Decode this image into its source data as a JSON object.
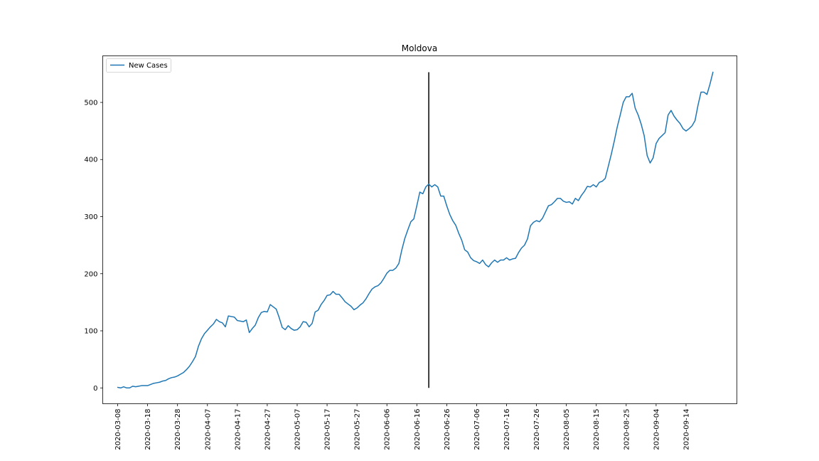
{
  "chart_data": {
    "type": "line",
    "title": "Moldova",
    "xlabel": "",
    "ylabel": "",
    "x_start": "2020-03-08",
    "x_end": "2020-09-28",
    "xlim": [
      "2020-03-03",
      "2020-10-01"
    ],
    "ylim": [
      -27.7,
      581.6
    ],
    "x_tick_labels": [
      "2020-03-08",
      "2020-03-18",
      "2020-03-28",
      "2020-04-07",
      "2020-04-17",
      "2020-04-27",
      "2020-05-07",
      "2020-05-17",
      "2020-05-27",
      "2020-06-06",
      "2020-06-16",
      "2020-06-26",
      "2020-07-06",
      "2020-07-16",
      "2020-07-26",
      "2020-08-05",
      "2020-08-15",
      "2020-08-25",
      "2020-09-04",
      "2020-09-14"
    ],
    "y_ticks": [
      0,
      100,
      200,
      300,
      400,
      500
    ],
    "legend": {
      "position": "top-left",
      "entries": [
        "New Cases"
      ]
    },
    "grid": false,
    "vertical_line": {
      "date": "2020-06-20",
      "ymin": 0,
      "ymax": 553
    },
    "series": [
      {
        "name": "New Cases",
        "color": "#1f77b4",
        "values": [
          1,
          0,
          2,
          0,
          0,
          3,
          2,
          3,
          4,
          4,
          4,
          6,
          8,
          9,
          10,
          12,
          13,
          16,
          18,
          19,
          21,
          24,
          27,
          32,
          38,
          46,
          55,
          73,
          86,
          95,
          101,
          107,
          112,
          120,
          116,
          114,
          107,
          126,
          125,
          124,
          118,
          117,
          116,
          119,
          97,
          104,
          110,
          123,
          132,
          134,
          133,
          146,
          142,
          138,
          123,
          106,
          102,
          109,
          104,
          101,
          102,
          107,
          116,
          115,
          107,
          113,
          133,
          136,
          146,
          153,
          162,
          163,
          169,
          164,
          164,
          158,
          151,
          147,
          143,
          137,
          140,
          145,
          149,
          156,
          165,
          173,
          177,
          179,
          184,
          192,
          201,
          206,
          206,
          210,
          218,
          242,
          262,
          277,
          291,
          296,
          319,
          343,
          340,
          352,
          357,
          352,
          356,
          352,
          336,
          336,
          319,
          304,
          293,
          285,
          271,
          259,
          242,
          238,
          228,
          223,
          221,
          218,
          224,
          216,
          212,
          219,
          224,
          220,
          224,
          224,
          228,
          224,
          226,
          227,
          237,
          245,
          250,
          261,
          284,
          290,
          293,
          291,
          297,
          308,
          319,
          321,
          326,
          332,
          332,
          327,
          325,
          326,
          322,
          332,
          328,
          337,
          344,
          353,
          352,
          356,
          352,
          360,
          362,
          367,
          388,
          409,
          432,
          457,
          478,
          500,
          510,
          510,
          516,
          490,
          478,
          462,
          442,
          407,
          394,
          403,
          428,
          437,
          442,
          447,
          478,
          486,
          476,
          469,
          463,
          454,
          450,
          454,
          459,
          468,
          495,
          518,
          518,
          514,
          532,
          553
        ]
      }
    ]
  }
}
